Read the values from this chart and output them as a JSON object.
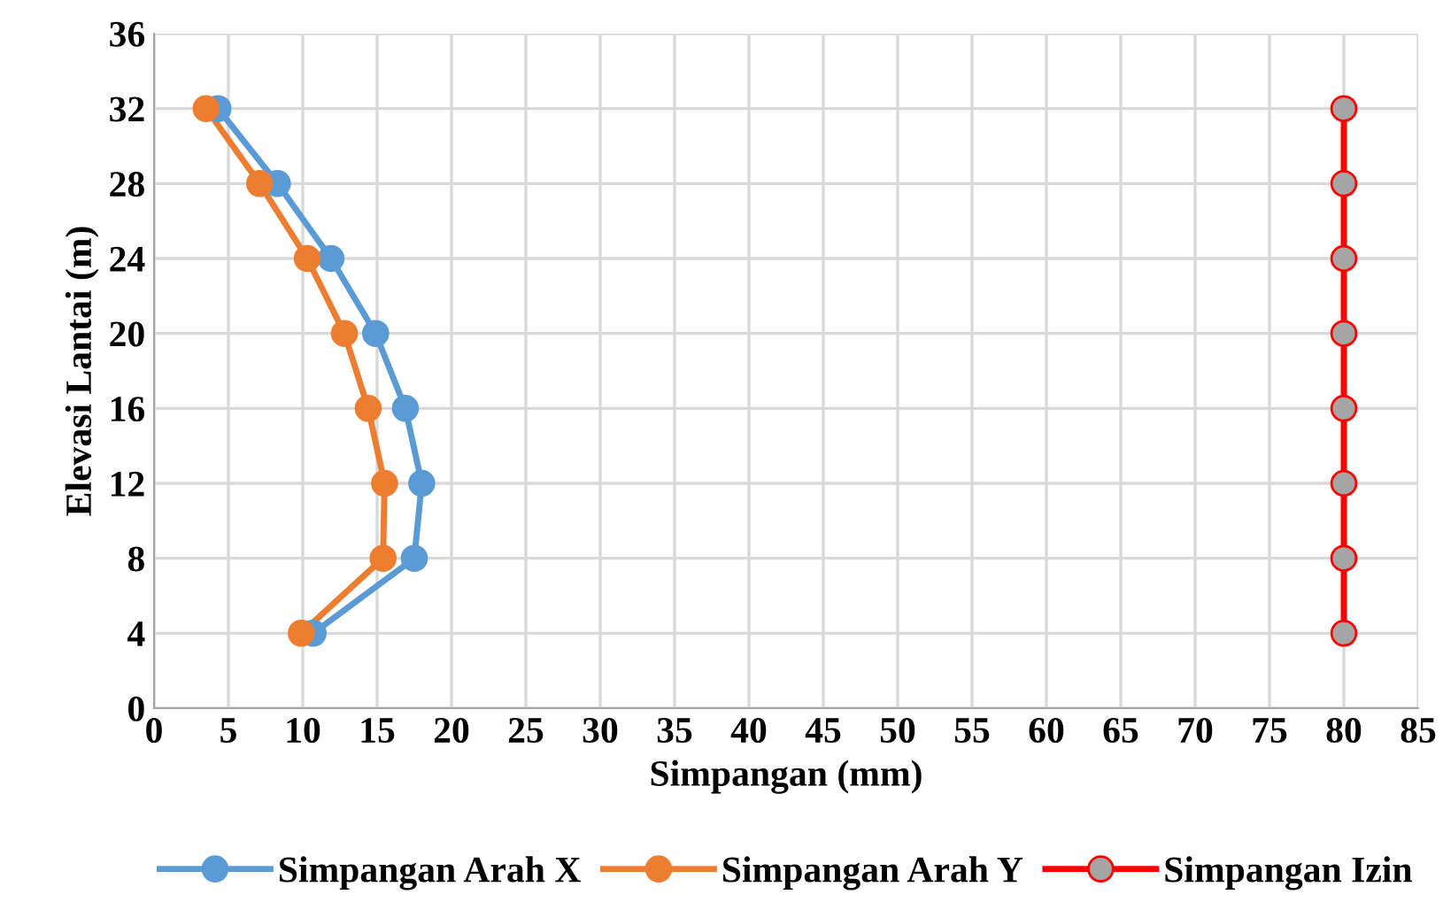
{
  "chart_data": {
    "type": "line",
    "xlabel": "Simpangan (mm)",
    "ylabel": "Elevasi Lantai (m)",
    "xlim": [
      0,
      85
    ],
    "xticks": [
      0,
      5,
      10,
      15,
      20,
      25,
      30,
      35,
      40,
      45,
      50,
      55,
      60,
      65,
      70,
      75,
      80,
      85
    ],
    "ylim": [
      0,
      36
    ],
    "yticks": [
      0,
      4,
      8,
      12,
      16,
      20,
      24,
      28,
      32,
      36
    ],
    "grid": true,
    "legend": "bottom",
    "marker": "circle",
    "line_style": "solid",
    "series": [
      {
        "name": "Simpangan Arah X",
        "color": "#5b9bd5",
        "x": [
          10.7,
          17.5,
          18.0,
          16.9,
          14.9,
          11.9,
          8.3,
          4.3
        ],
        "values": [
          4,
          8,
          12,
          16,
          20,
          24,
          28,
          32
        ]
      },
      {
        "name": "Simpangan Arah Y",
        "color": "#ed7d31",
        "x": [
          9.9,
          15.4,
          15.5,
          14.4,
          12.8,
          10.3,
          7.1,
          3.5
        ],
        "values": [
          4,
          8,
          12,
          16,
          20,
          24,
          28,
          32
        ]
      },
      {
        "name": "Simpangan Izin",
        "color": "#ff0000",
        "colors": [
          "#a5a5a5",
          "#a5a5a5",
          "#a5a5a5",
          "#a5a5a5",
          "#a5a5a5",
          "#a5a5a5",
          "#a5a5a5",
          "#a5a5a5"
        ],
        "x": [
          80,
          80,
          80,
          80,
          80,
          80,
          80,
          80
        ],
        "values": [
          4,
          8,
          12,
          16,
          20,
          24,
          28,
          32
        ]
      }
    ]
  }
}
